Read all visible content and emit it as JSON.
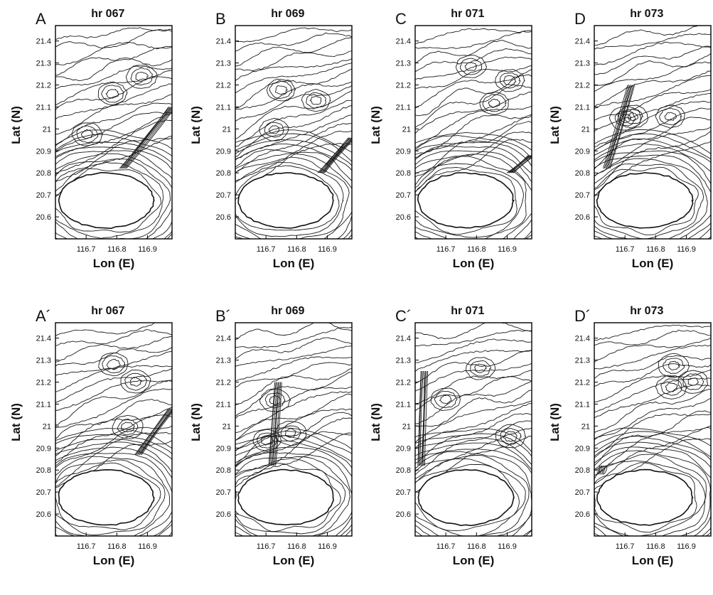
{
  "chart_data": [
    {
      "type": "contour",
      "panel_label": "A",
      "title": "hr 067",
      "xlabel": "Lon (E)",
      "ylabel": "Lat (N)",
      "x_ticks": [
        "116.7",
        "116.8",
        "116.9"
      ],
      "y_ticks": [
        "21.4",
        "21.3",
        "21.2",
        "21.1",
        "21",
        "20.9",
        "20.8",
        "20.7",
        "20.6"
      ],
      "xlim": [
        116.6,
        116.98
      ],
      "ylim": [
        20.5,
        21.47
      ],
      "island": {
        "lon_min": 116.61,
        "lon_max": 116.92,
        "lat_min": 20.55,
        "lat_max": 20.8
      },
      "front": {
        "from": [
          116.82,
          20.82
        ],
        "to": [
          116.98,
          21.1
        ]
      }
    },
    {
      "type": "contour",
      "panel_label": "B",
      "title": "hr 069",
      "xlabel": "Lon (E)",
      "ylabel": "Lat (N)",
      "x_ticks": [
        "116.7",
        "116.8",
        "116.9"
      ],
      "y_ticks": [
        "21.4",
        "21.3",
        "21.2",
        "21.1",
        "21",
        "20.9",
        "20.8",
        "20.7",
        "20.6"
      ],
      "xlim": [
        116.6,
        116.98
      ],
      "ylim": [
        20.5,
        21.47
      ],
      "island": {
        "lon_min": 116.61,
        "lon_max": 116.92,
        "lat_min": 20.55,
        "lat_max": 20.8
      },
      "front": {
        "from": [
          116.88,
          20.8
        ],
        "to": [
          116.98,
          20.96
        ]
      }
    },
    {
      "type": "contour",
      "panel_label": "C",
      "title": "hr 071",
      "xlabel": "Lon (E)",
      "ylabel": "Lat (N)",
      "x_ticks": [
        "116.7",
        "116.8",
        "116.9"
      ],
      "y_ticks": [
        "21.4",
        "21.3",
        "21.2",
        "21.1",
        "21",
        "20.9",
        "20.8",
        "20.7",
        "20.6"
      ],
      "xlim": [
        116.6,
        116.98
      ],
      "ylim": [
        20.5,
        21.47
      ],
      "island": {
        "lon_min": 116.61,
        "lon_max": 116.92,
        "lat_min": 20.55,
        "lat_max": 20.8
      },
      "front": {
        "from": [
          116.91,
          20.8
        ],
        "to": [
          116.98,
          20.88
        ]
      }
    },
    {
      "type": "contour",
      "panel_label": "D",
      "title": "hr 073",
      "xlabel": "Lon (E)",
      "ylabel": "Lat (N)",
      "x_ticks": [
        "116.7",
        "116.8",
        "116.9"
      ],
      "y_ticks": [
        "21.4",
        "21.3",
        "21.2",
        "21.1",
        "21",
        "20.9",
        "20.8",
        "20.7",
        "20.6"
      ],
      "xlim": [
        116.6,
        116.98
      ],
      "ylim": [
        20.5,
        21.47
      ],
      "island": {
        "lon_min": 116.61,
        "lon_max": 116.92,
        "lat_min": 20.55,
        "lat_max": 20.8
      },
      "front": {
        "from": [
          116.64,
          20.82
        ],
        "to": [
          116.72,
          21.2
        ]
      }
    },
    {
      "type": "contour",
      "panel_label": "A´",
      "title": "hr 067",
      "xlabel": "Lon (E)",
      "ylabel": "Lat (N)",
      "x_ticks": [
        "116.7",
        "116.8",
        "116.9"
      ],
      "y_ticks": [
        "21.4",
        "21.3",
        "21.2",
        "21.1",
        "21",
        "20.9",
        "20.8",
        "20.7",
        "20.6"
      ],
      "xlim": [
        116.6,
        116.98
      ],
      "ylim": [
        20.5,
        21.47
      ],
      "island": {
        "lon_min": 116.61,
        "lon_max": 116.92,
        "lat_min": 20.55,
        "lat_max": 20.8
      },
      "front": {
        "from": [
          116.87,
          20.87
        ],
        "to": [
          116.98,
          21.08
        ]
      }
    },
    {
      "type": "contour",
      "panel_label": "B´",
      "title": "hr 069",
      "xlabel": "Lon (E)",
      "ylabel": "Lat (N)",
      "x_ticks": [
        "116.7",
        "116.8",
        "116.9"
      ],
      "y_ticks": [
        "21.4",
        "21.3",
        "21.2",
        "21.1",
        "21",
        "20.9",
        "20.8",
        "20.7",
        "20.6"
      ],
      "xlim": [
        116.6,
        116.98
      ],
      "ylim": [
        20.5,
        21.47
      ],
      "island": {
        "lon_min": 116.61,
        "lon_max": 116.92,
        "lat_min": 20.55,
        "lat_max": 20.8
      },
      "front": {
        "from": [
          116.72,
          20.82
        ],
        "to": [
          116.74,
          21.2
        ]
      }
    },
    {
      "type": "contour",
      "panel_label": "C´",
      "title": "hr 071",
      "xlabel": "Lon (E)",
      "ylabel": "Lat (N)",
      "x_ticks": [
        "116.7",
        "116.8",
        "116.9"
      ],
      "y_ticks": [
        "21.4",
        "21.3",
        "21.2",
        "21.1",
        "21",
        "20.9",
        "20.8",
        "20.7",
        "20.6"
      ],
      "xlim": [
        116.6,
        116.98
      ],
      "ylim": [
        20.5,
        21.47
      ],
      "island": {
        "lon_min": 116.61,
        "lon_max": 116.92,
        "lat_min": 20.55,
        "lat_max": 20.8
      },
      "front": {
        "from": [
          116.62,
          20.82
        ],
        "to": [
          116.63,
          21.25
        ]
      }
    },
    {
      "type": "contour",
      "panel_label": "D´",
      "title": "hr 073",
      "xlabel": "Lon (E)",
      "ylabel": "Lat (N)",
      "x_ticks": [
        "116.7",
        "116.8",
        "116.9"
      ],
      "y_ticks": [
        "21.4",
        "21.3",
        "21.2",
        "21.1",
        "21",
        "20.9",
        "20.8",
        "20.7",
        "20.6"
      ],
      "xlim": [
        116.6,
        116.98
      ],
      "ylim": [
        20.5,
        21.47
      ],
      "island": {
        "lon_min": 116.61,
        "lon_max": 116.92,
        "lat_min": 20.55,
        "lat_max": 20.8
      },
      "front": {
        "from": [
          116.62,
          20.78
        ],
        "to": [
          116.63,
          20.82
        ]
      }
    }
  ]
}
